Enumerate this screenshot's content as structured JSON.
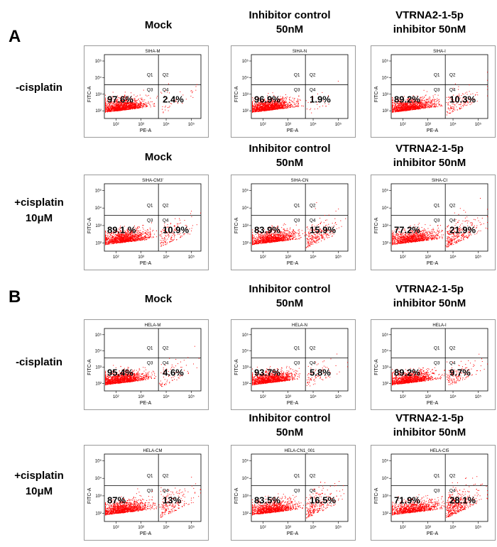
{
  "panels": [
    {
      "letter": "A",
      "rows": [
        {
          "label_lines": [
            "-cisplatin"
          ],
          "plots": [
            {
              "title_lines": [
                "Mock"
              ],
              "sample": "SIHA-M",
              "lower_left": "97.6%",
              "lower_right": "2.4%"
            },
            {
              "title_lines": [
                "Inhibitor control",
                "50nM"
              ],
              "sample": "SIHA-N",
              "lower_left": "96.9%",
              "lower_right": "1.9%"
            },
            {
              "title_lines": [
                "VTRNA2-1-5p",
                "inhibitor 50nM"
              ],
              "sample": "SIHA-I",
              "lower_left": "89.2%",
              "lower_right": "10.3%"
            }
          ]
        },
        {
          "label_lines": [
            "+cisplatin",
            "10μM"
          ],
          "plots": [
            {
              "title_lines": [
                "Mock"
              ],
              "sample": "SIHA-CM3'",
              "lower_left": "89.1 %",
              "lower_right": "10.9%"
            },
            {
              "title_lines": [
                "Inhibitor control",
                "50nM"
              ],
              "sample": "SIHA-CN",
              "lower_left": "83.9%",
              "lower_right": "15.9%"
            },
            {
              "title_lines": [
                "VTRNA2-1-5p",
                "inhibitor 50nM"
              ],
              "sample": "SIHA-CI",
              "lower_left": "77.2%",
              "lower_right": "21.9%"
            }
          ]
        }
      ]
    },
    {
      "letter": "B",
      "rows": [
        {
          "label_lines": [
            "-cisplatin"
          ],
          "plots": [
            {
              "title_lines": [
                "Mock"
              ],
              "sample": "HELA-M",
              "lower_left": "95.4%",
              "lower_right": "4.6%"
            },
            {
              "title_lines": [
                "Inhibitor control",
                "50nM"
              ],
              "sample": "HELA-N",
              "lower_left": "93.7%",
              "lower_right": "5.8%"
            },
            {
              "title_lines": [
                "VTRNA2-1-5p",
                "inhibitor 50nM"
              ],
              "sample": "HELA-I",
              "lower_left": "89.2%",
              "lower_right": "9.7%"
            }
          ]
        },
        {
          "label_lines": [
            "+cisplatin",
            "10μM"
          ],
          "plots": [
            {
              "title_lines": [
                "Mock"
              ],
              "sample": "HELA-CM",
              "lower_left": "87%",
              "lower_right": "13%"
            },
            {
              "title_lines": [
                "Inhibitor control",
                "50nM"
              ],
              "sample": "HELA-CN1_001",
              "lower_left": "83.5%",
              "lower_right": "16.5%"
            },
            {
              "title_lines": [
                "VTRNA2-1-5p",
                "inhibitor 50nM"
              ],
              "sample": "HELA-CI5",
              "lower_left": "71.9%",
              "lower_right": "28.1%"
            }
          ]
        }
      ]
    }
  ],
  "axes": {
    "x_label": "PE-A",
    "y_label": "FITC-A",
    "x_ticks": [
      "10²",
      "10³",
      "10⁴",
      "10⁵"
    ],
    "y_ticks": [
      "10²",
      "10³",
      "10⁴",
      "10⁵"
    ],
    "quadrants": [
      "Q1",
      "Q2",
      "Q3",
      "Q4"
    ]
  },
  "colors": {
    "dots": "#ff0000",
    "frame": "#9a9a9a",
    "gate": "#000000"
  },
  "chart_data": [
    {
      "type": "scatter",
      "panel": "A",
      "condition": "-cisplatin",
      "treatment": "Mock",
      "sample": "SIHA-M",
      "quadrant_percent": {
        "Q3": 97.6,
        "Q4": 2.4
      }
    },
    {
      "type": "scatter",
      "panel": "A",
      "condition": "-cisplatin",
      "treatment": "Inhibitor control 50nM",
      "sample": "SIHA-N",
      "quadrant_percent": {
        "Q3": 96.9,
        "Q4": 1.9
      }
    },
    {
      "type": "scatter",
      "panel": "A",
      "condition": "-cisplatin",
      "treatment": "VTRNA2-1-5p inhibitor 50nM",
      "sample": "SIHA-I",
      "quadrant_percent": {
        "Q3": 89.2,
        "Q4": 10.3
      }
    },
    {
      "type": "scatter",
      "panel": "A",
      "condition": "+cisplatin 10μM",
      "treatment": "Mock",
      "sample": "SIHA-CM3'",
      "quadrant_percent": {
        "Q3": 89.1,
        "Q4": 10.9
      }
    },
    {
      "type": "scatter",
      "panel": "A",
      "condition": "+cisplatin 10μM",
      "treatment": "Inhibitor control 50nM",
      "sample": "SIHA-CN",
      "quadrant_percent": {
        "Q3": 83.9,
        "Q4": 15.9
      }
    },
    {
      "type": "scatter",
      "panel": "A",
      "condition": "+cisplatin 10μM",
      "treatment": "VTRNA2-1-5p inhibitor 50nM",
      "sample": "SIHA-CI",
      "quadrant_percent": {
        "Q3": 77.2,
        "Q4": 21.9
      }
    },
    {
      "type": "scatter",
      "panel": "B",
      "condition": "-cisplatin",
      "treatment": "Mock",
      "sample": "HELA-M",
      "quadrant_percent": {
        "Q3": 95.4,
        "Q4": 4.6
      }
    },
    {
      "type": "scatter",
      "panel": "B",
      "condition": "-cisplatin",
      "treatment": "Inhibitor control 50nM",
      "sample": "HELA-N",
      "quadrant_percent": {
        "Q3": 93.7,
        "Q4": 5.8
      }
    },
    {
      "type": "scatter",
      "panel": "B",
      "condition": "-cisplatin",
      "treatment": "VTRNA2-1-5p inhibitor 50nM",
      "sample": "HELA-I",
      "quadrant_percent": {
        "Q3": 89.2,
        "Q4": 9.7
      }
    },
    {
      "type": "scatter",
      "panel": "B",
      "condition": "+cisplatin 10μM",
      "treatment": "Mock",
      "sample": "HELA-CM",
      "quadrant_percent": {
        "Q3": 87,
        "Q4": 13
      }
    },
    {
      "type": "scatter",
      "panel": "B",
      "condition": "+cisplatin 10μM",
      "treatment": "Inhibitor control 50nM",
      "sample": "HELA-CN1_001",
      "quadrant_percent": {
        "Q3": 83.5,
        "Q4": 16.5
      }
    },
    {
      "type": "scatter",
      "panel": "B",
      "condition": "+cisplatin 10μM",
      "treatment": "VTRNA2-1-5p inhibitor 50nM",
      "sample": "HELA-CI5",
      "quadrant_percent": {
        "Q3": 71.9,
        "Q4": 28.1
      }
    }
  ]
}
